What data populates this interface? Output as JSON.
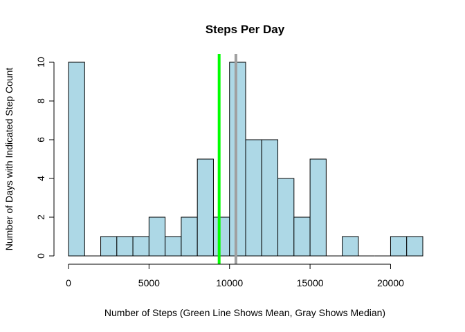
{
  "chart_data": {
    "type": "bar",
    "title": "Steps Per Day",
    "xlabel": "Number of Steps (Green Line Shows Mean, Gray Shows Median)",
    "ylabel": "Number of Days with Indicated Step Count",
    "bin_width": 1000,
    "bins": [
      {
        "start": 0,
        "end": 1000,
        "count": 10
      },
      {
        "start": 1000,
        "end": 2000,
        "count": 0
      },
      {
        "start": 2000,
        "end": 3000,
        "count": 1
      },
      {
        "start": 3000,
        "end": 4000,
        "count": 1
      },
      {
        "start": 4000,
        "end": 5000,
        "count": 1
      },
      {
        "start": 5000,
        "end": 6000,
        "count": 2
      },
      {
        "start": 6000,
        "end": 7000,
        "count": 1
      },
      {
        "start": 7000,
        "end": 8000,
        "count": 2
      },
      {
        "start": 8000,
        "end": 9000,
        "count": 5
      },
      {
        "start": 9000,
        "end": 10000,
        "count": 2
      },
      {
        "start": 10000,
        "end": 11000,
        "count": 10
      },
      {
        "start": 11000,
        "end": 12000,
        "count": 6
      },
      {
        "start": 12000,
        "end": 13000,
        "count": 6
      },
      {
        "start": 13000,
        "end": 14000,
        "count": 4
      },
      {
        "start": 14000,
        "end": 15000,
        "count": 2
      },
      {
        "start": 15000,
        "end": 16000,
        "count": 5
      },
      {
        "start": 16000,
        "end": 17000,
        "count": 0
      },
      {
        "start": 17000,
        "end": 18000,
        "count": 1
      },
      {
        "start": 18000,
        "end": 19000,
        "count": 0
      },
      {
        "start": 19000,
        "end": 20000,
        "count": 0
      },
      {
        "start": 20000,
        "end": 21000,
        "count": 1
      },
      {
        "start": 21000,
        "end": 22000,
        "count": 1
      }
    ],
    "xlim": [
      0,
      22000
    ],
    "ylim": [
      0,
      10
    ],
    "x_ticks": [
      0,
      5000,
      10000,
      15000,
      20000
    ],
    "y_ticks": [
      0,
      2,
      4,
      6,
      8,
      10
    ],
    "reference_lines": [
      {
        "label": "Mean",
        "value": 9354,
        "color": "#00ff00"
      },
      {
        "label": "Median",
        "value": 10395,
        "color": "#a0a0a0"
      }
    ],
    "bar_color": "#add8e6",
    "grid": false
  }
}
